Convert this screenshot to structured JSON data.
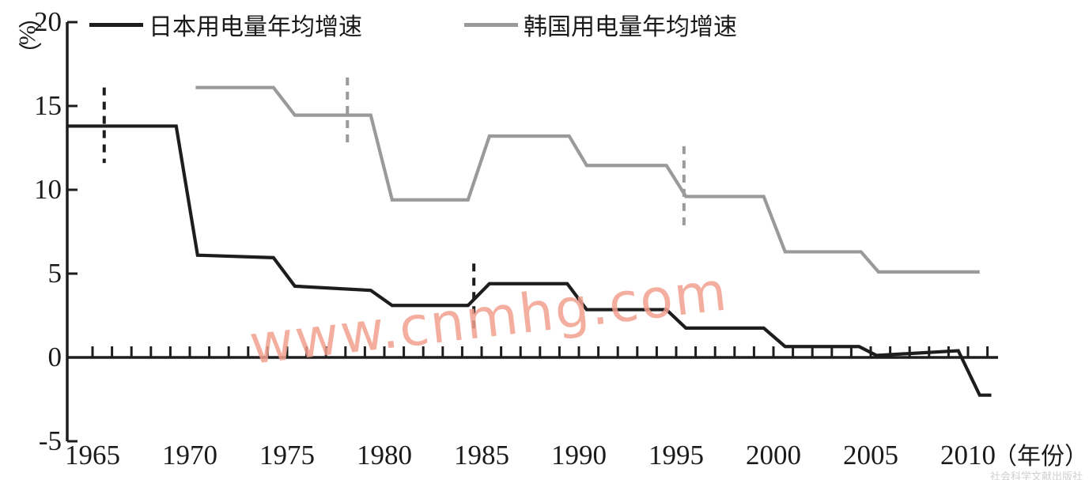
{
  "legend": {
    "items": [
      {
        "label": "日本用电量年均增速",
        "color": "#1e1d1d"
      },
      {
        "label": "韩国用电量年均增速",
        "color": "#9a9a9a"
      }
    ]
  },
  "y_axis": {
    "unit_label": "（%）",
    "ticks": [
      20,
      15,
      10,
      5,
      0,
      -5
    ]
  },
  "x_axis": {
    "unit_label": "（年份）",
    "labeled_years": [
      1965,
      1970,
      1975,
      1980,
      1985,
      1990,
      1995,
      2000,
      2005,
      2010
    ],
    "minor_tick_year_start": 1965,
    "minor_tick_year_end": 2011
  },
  "watermarks": {
    "site": "www.cnmhg.com",
    "site_color": "#f2a08f",
    "publisher": "社会科学文献出版社"
  },
  "chart_data": {
    "type": "line",
    "title": "",
    "xlabel": "年份",
    "ylabel": "%",
    "xlim": [
      1963.7,
      2012.2
    ],
    "ylim": [
      -5,
      20
    ],
    "grid": false,
    "legend_position": "top",
    "series": [
      {
        "name": "日本用电量年均增速",
        "color": "#1e1d1d",
        "points": [
          [
            1963.7,
            13.8
          ],
          [
            1969.3,
            13.8
          ],
          [
            1970.4,
            6.1
          ],
          [
            1974.3,
            5.95
          ],
          [
            1975.4,
            4.25
          ],
          [
            1979.3,
            4.0
          ],
          [
            1980.4,
            3.1
          ],
          [
            1984.3,
            3.1
          ],
          [
            1985.4,
            4.4
          ],
          [
            1989.4,
            4.4
          ],
          [
            1990.4,
            2.85
          ],
          [
            1994.5,
            2.85
          ],
          [
            1995.5,
            1.75
          ],
          [
            1999.5,
            1.75
          ],
          [
            2000.6,
            0.65
          ],
          [
            2004.4,
            0.65
          ],
          [
            2005.3,
            0.12
          ],
          [
            2009.5,
            0.4
          ],
          [
            2010.6,
            -2.25
          ],
          [
            2011.2,
            -2.25
          ]
        ]
      },
      {
        "name": "韩国用电量年均增速",
        "color": "#9a9a9a",
        "points": [
          [
            1970.3,
            16.1
          ],
          [
            1974.3,
            16.1
          ],
          [
            1975.4,
            14.45
          ],
          [
            1979.3,
            14.45
          ],
          [
            1980.4,
            9.4
          ],
          [
            1984.3,
            9.4
          ],
          [
            1985.4,
            13.2
          ],
          [
            1989.5,
            13.2
          ],
          [
            1990.4,
            11.45
          ],
          [
            1994.5,
            11.45
          ],
          [
            1995.5,
            9.6
          ],
          [
            1999.5,
            9.6
          ],
          [
            2000.6,
            6.3
          ],
          [
            2004.5,
            6.3
          ],
          [
            2005.4,
            5.1
          ],
          [
            2010.6,
            5.1
          ]
        ]
      }
    ],
    "dashed_vlines": [
      {
        "x": 1965.6,
        "y_from": 11.6,
        "y_to": 16.1,
        "color": "#1e1d1d"
      },
      {
        "x": 1978.1,
        "y_from": 12.6,
        "y_to": 16.7,
        "color": "#9a9a9a"
      },
      {
        "x": 1984.6,
        "y_from": 1.5,
        "y_to": 5.6,
        "color": "#1e1d1d"
      },
      {
        "x": 1995.4,
        "y_from": 7.6,
        "y_to": 12.6,
        "color": "#9a9a9a"
      }
    ]
  }
}
